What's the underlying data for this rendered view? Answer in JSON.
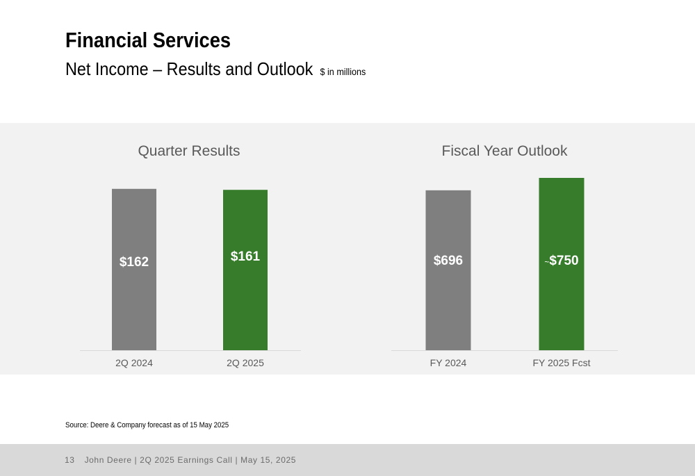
{
  "header": {
    "title": "Financial Services",
    "subtitle": "Net Income – Results and Outlook",
    "units": "$ in millions"
  },
  "colors": {
    "prior": "#7f7f7f",
    "current": "#367c2b",
    "panel": "#f2f2f2",
    "axis": "#d9d9d9"
  },
  "chart_data": [
    {
      "type": "bar",
      "title": "Quarter Results",
      "categories": [
        "2Q 2024",
        "2Q 2025"
      ],
      "values": [
        162,
        161
      ],
      "labels": [
        "$162",
        "$161"
      ],
      "label_prefix": [
        "",
        ""
      ],
      "ylim": [
        0,
        173
      ],
      "grid": false
    },
    {
      "type": "bar",
      "title": "Fiscal Year Outlook",
      "categories": [
        "FY 2024",
        "FY 2025 Fcst"
      ],
      "values": [
        696,
        750
      ],
      "labels": [
        "$696",
        "$750"
      ],
      "label_prefix": [
        "",
        "~"
      ],
      "ylim": [
        0,
        750
      ],
      "grid": false
    }
  ],
  "source": "Source: Deere & Company forecast as of 15 May 2025",
  "footer": {
    "page_number": "13",
    "text": "John Deere | 2Q 2025 Earnings Call | May 15, 2025"
  }
}
